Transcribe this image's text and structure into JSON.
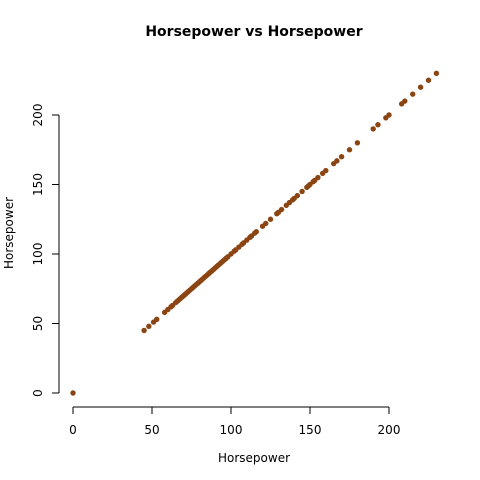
{
  "chart_data": {
    "type": "scatter",
    "title": "Horsepower vs Horsepower",
    "xlabel": "Horsepower",
    "ylabel": "Horsepower",
    "xlim": [
      0,
      230
    ],
    "ylim": [
      0,
      230
    ],
    "x_ticks": [
      0,
      50,
      100,
      150,
      200
    ],
    "y_ticks": [
      0,
      50,
      100,
      150,
      200
    ],
    "point_color": "#8B4513",
    "grid": false,
    "points": [
      [
        0,
        0
      ],
      [
        45,
        45
      ],
      [
        48,
        48
      ],
      [
        51,
        51
      ],
      [
        53,
        53
      ],
      [
        58,
        58
      ],
      [
        60,
        60
      ],
      [
        62,
        62
      ],
      [
        63,
        63
      ],
      [
        65,
        65
      ],
      [
        66,
        66
      ],
      [
        67,
        67
      ],
      [
        68,
        68
      ],
      [
        69,
        69
      ],
      [
        70,
        70
      ],
      [
        71,
        71
      ],
      [
        72,
        72
      ],
      [
        73,
        73
      ],
      [
        74,
        74
      ],
      [
        75,
        75
      ],
      [
        76,
        76
      ],
      [
        77,
        77
      ],
      [
        78,
        78
      ],
      [
        79,
        79
      ],
      [
        80,
        80
      ],
      [
        81,
        81
      ],
      [
        82,
        82
      ],
      [
        83,
        83
      ],
      [
        84,
        84
      ],
      [
        85,
        85
      ],
      [
        86,
        86
      ],
      [
        87,
        87
      ],
      [
        88,
        88
      ],
      [
        89,
        89
      ],
      [
        90,
        90
      ],
      [
        91,
        91
      ],
      [
        92,
        92
      ],
      [
        93,
        93
      ],
      [
        94,
        94
      ],
      [
        95,
        95
      ],
      [
        96,
        96
      ],
      [
        97,
        97
      ],
      [
        98,
        98
      ],
      [
        100,
        100
      ],
      [
        102,
        102
      ],
      [
        103,
        103
      ],
      [
        105,
        105
      ],
      [
        107,
        107
      ],
      [
        108,
        108
      ],
      [
        110,
        110
      ],
      [
        112,
        112
      ],
      [
        113,
        113
      ],
      [
        115,
        115
      ],
      [
        116,
        116
      ],
      [
        120,
        120
      ],
      [
        122,
        122
      ],
      [
        125,
        125
      ],
      [
        129,
        129
      ],
      [
        130,
        130
      ],
      [
        132,
        132
      ],
      [
        135,
        135
      ],
      [
        137,
        137
      ],
      [
        139,
        139
      ],
      [
        140,
        140
      ],
      [
        142,
        142
      ],
      [
        145,
        145
      ],
      [
        148,
        148
      ],
      [
        149,
        149
      ],
      [
        150,
        150
      ],
      [
        152,
        152
      ],
      [
        153,
        153
      ],
      [
        155,
        155
      ],
      [
        158,
        158
      ],
      [
        160,
        160
      ],
      [
        165,
        165
      ],
      [
        167,
        167
      ],
      [
        170,
        170
      ],
      [
        175,
        175
      ],
      [
        180,
        180
      ],
      [
        190,
        190
      ],
      [
        193,
        193
      ],
      [
        198,
        198
      ],
      [
        200,
        200
      ],
      [
        208,
        208
      ],
      [
        210,
        210
      ],
      [
        215,
        215
      ],
      [
        220,
        220
      ],
      [
        225,
        225
      ],
      [
        230,
        230
      ]
    ]
  }
}
